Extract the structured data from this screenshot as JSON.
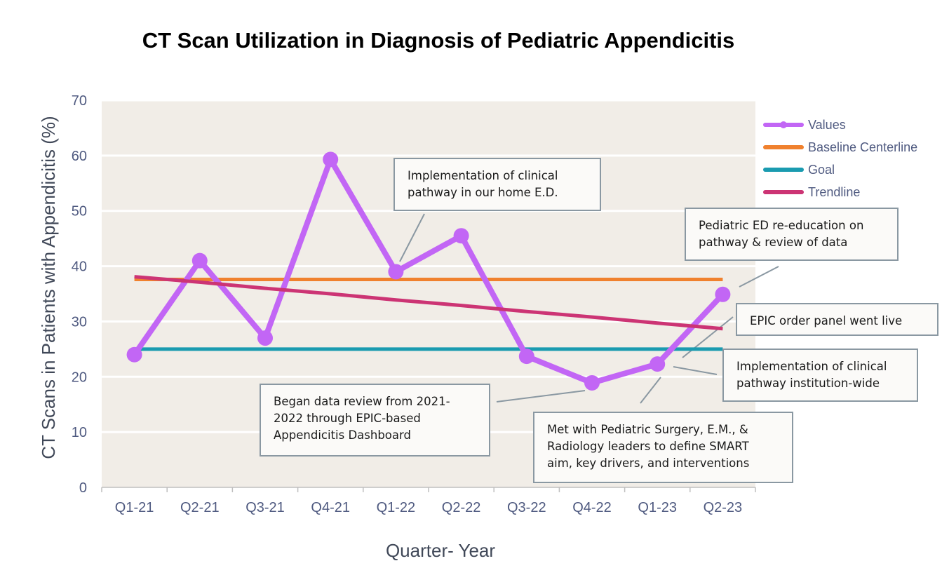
{
  "chart_data": {
    "type": "line",
    "title": "CT Scan Utilization in Diagnosis of Pediatric Appendicitis",
    "xlabel": "Quarter- Year",
    "ylabel": "CT Scans in Patients with Appendicitis (%)",
    "ylim": [
      0,
      70
    ],
    "yticks": [
      "0",
      "10",
      "20",
      "30",
      "40",
      "50",
      "60",
      "70"
    ],
    "grid": true,
    "legend_position": "right",
    "categories": [
      "Q1-21",
      "Q2-21",
      "Q3-21",
      "Q4-21",
      "Q1-22",
      "Q2-22",
      "Q3-22",
      "Q4-22",
      "Q1-23",
      "Q2-23"
    ],
    "series": [
      {
        "name": "Values",
        "color": "#c266f5",
        "values": [
          24,
          41,
          27,
          59.3,
          39,
          45.5,
          23.7,
          18.9,
          22.3,
          34.9
        ]
      },
      {
        "name": "Baseline Centerline",
        "color": "#f0812e",
        "values": [
          37.6,
          37.6,
          37.6,
          37.6,
          37.6,
          37.6,
          37.6,
          37.6,
          37.6,
          37.6
        ]
      },
      {
        "name": "Goal",
        "color": "#1a9bb0",
        "values": [
          25,
          25,
          25,
          25,
          25,
          25,
          25,
          25,
          25,
          25
        ]
      },
      {
        "name": "Trendline",
        "color": "#cc3474",
        "values": [
          38.1,
          37.1,
          36.0,
          35.0,
          33.9,
          32.9,
          31.8,
          30.8,
          29.7,
          28.7
        ]
      }
    ],
    "annotations": [
      {
        "lines": [
          "Implementation of clinical",
          "pathway in our home E.D."
        ]
      },
      {
        "lines": [
          "Pediatric ED re-education on",
          "pathway & review of data"
        ]
      },
      {
        "lines": [
          "EPIC order panel went live"
        ]
      },
      {
        "lines": [
          "Implementation of clinical",
          "pathway institution-wide"
        ]
      },
      {
        "lines": [
          "Began data review from 2021-",
          "2022 through EPIC-based",
          "Appendicitis Dashboard"
        ]
      },
      {
        "lines": [
          "Met with Pediatric Surgery, E.M., &",
          "Radiology leaders to define SMART",
          "aim, key drivers, and interventions"
        ]
      }
    ]
  }
}
